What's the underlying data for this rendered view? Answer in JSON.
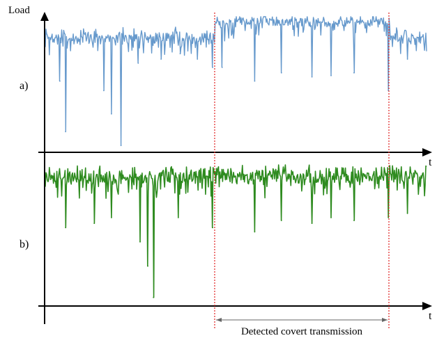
{
  "chart_data": [
    {
      "type": "line",
      "panel_label": "a)",
      "ylabel": "Load",
      "xlabel": "t",
      "color": "#6699cc",
      "x_range": [
        0,
        1
      ],
      "ylim": [
        0,
        1
      ],
      "baseline": 0.84,
      "shifted_baseline": 0.955,
      "transmission_window": [
        0.445,
        0.905
      ],
      "dips": [
        {
          "x": 0.04,
          "y": 0.52
        },
        {
          "x": 0.055,
          "y": 0.15
        },
        {
          "x": 0.155,
          "y": 0.45
        },
        {
          "x": 0.175,
          "y": 0.28
        },
        {
          "x": 0.2,
          "y": 0.05
        },
        {
          "x": 0.245,
          "y": 0.65
        },
        {
          "x": 0.305,
          "y": 0.68
        },
        {
          "x": 0.355,
          "y": 0.72
        },
        {
          "x": 0.4,
          "y": 0.68
        },
        {
          "x": 0.44,
          "y": 0.62
        },
        {
          "x": 0.465,
          "y": 0.62
        },
        {
          "x": 0.55,
          "y": 0.52
        },
        {
          "x": 0.62,
          "y": 0.58
        },
        {
          "x": 0.7,
          "y": 0.55
        },
        {
          "x": 0.75,
          "y": 0.56
        },
        {
          "x": 0.81,
          "y": 0.58
        },
        {
          "x": 0.9,
          "y": 0.45
        },
        {
          "x": 0.95,
          "y": 0.68
        }
      ]
    },
    {
      "type": "line",
      "panel_label": "b)",
      "xlabel": "t",
      "color": "#2e8b1f",
      "x_range": [
        0,
        1
      ],
      "ylim": [
        0,
        1
      ],
      "baseline": 0.91,
      "transmission_window": [
        0.445,
        0.905
      ],
      "dips": [
        {
          "x": 0.055,
          "y": 0.55
        },
        {
          "x": 0.13,
          "y": 0.58
        },
        {
          "x": 0.175,
          "y": 0.62
        },
        {
          "x": 0.25,
          "y": 0.45
        },
        {
          "x": 0.27,
          "y": 0.28
        },
        {
          "x": 0.285,
          "y": 0.06
        },
        {
          "x": 0.35,
          "y": 0.62
        },
        {
          "x": 0.44,
          "y": 0.55
        },
        {
          "x": 0.55,
          "y": 0.52
        },
        {
          "x": 0.62,
          "y": 0.6
        },
        {
          "x": 0.7,
          "y": 0.58
        },
        {
          "x": 0.75,
          "y": 0.62
        },
        {
          "x": 0.81,
          "y": 0.6
        },
        {
          "x": 0.9,
          "y": 0.62
        },
        {
          "x": 0.95,
          "y": 0.65
        }
      ]
    }
  ],
  "annotation": {
    "text": "Detected covert transmission",
    "line_color": "#e02020"
  }
}
